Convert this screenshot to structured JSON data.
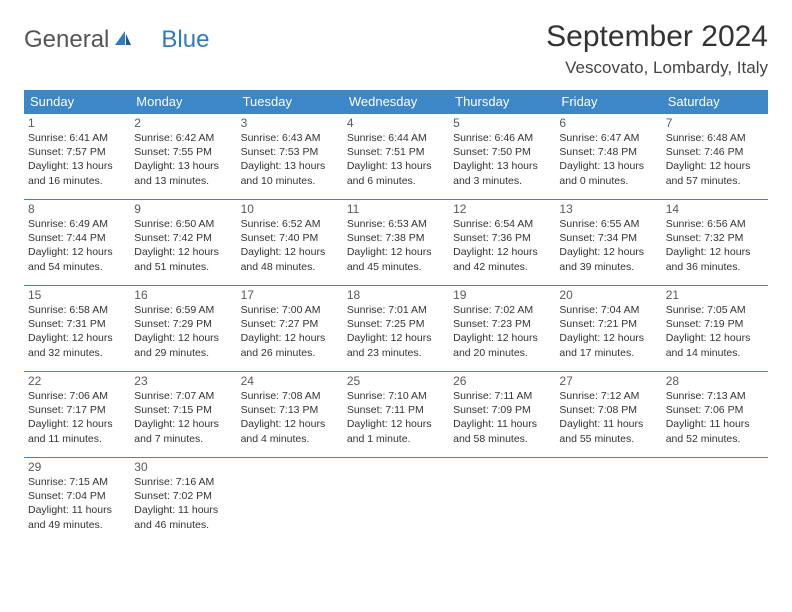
{
  "logo": {
    "text1": "General",
    "text2": "Blue"
  },
  "title": "September 2024",
  "location": "Vescovato, Lombardy, Italy",
  "theme": {
    "header_bg": "#3b87c8",
    "header_fg": "#ffffff",
    "border": "#3b87c8",
    "text": "#333333",
    "logo_gray": "#555555",
    "logo_blue": "#2e7bc0"
  },
  "day_headers": [
    "Sunday",
    "Monday",
    "Tuesday",
    "Wednesday",
    "Thursday",
    "Friday",
    "Saturday"
  ],
  "days": [
    {
      "n": 1,
      "sunrise": "6:41 AM",
      "sunset": "7:57 PM",
      "dl": "13 hours and 16 minutes."
    },
    {
      "n": 2,
      "sunrise": "6:42 AM",
      "sunset": "7:55 PM",
      "dl": "13 hours and 13 minutes."
    },
    {
      "n": 3,
      "sunrise": "6:43 AM",
      "sunset": "7:53 PM",
      "dl": "13 hours and 10 minutes."
    },
    {
      "n": 4,
      "sunrise": "6:44 AM",
      "sunset": "7:51 PM",
      "dl": "13 hours and 6 minutes."
    },
    {
      "n": 5,
      "sunrise": "6:46 AM",
      "sunset": "7:50 PM",
      "dl": "13 hours and 3 minutes."
    },
    {
      "n": 6,
      "sunrise": "6:47 AM",
      "sunset": "7:48 PM",
      "dl": "13 hours and 0 minutes."
    },
    {
      "n": 7,
      "sunrise": "6:48 AM",
      "sunset": "7:46 PM",
      "dl": "12 hours and 57 minutes."
    },
    {
      "n": 8,
      "sunrise": "6:49 AM",
      "sunset": "7:44 PM",
      "dl": "12 hours and 54 minutes."
    },
    {
      "n": 9,
      "sunrise": "6:50 AM",
      "sunset": "7:42 PM",
      "dl": "12 hours and 51 minutes."
    },
    {
      "n": 10,
      "sunrise": "6:52 AM",
      "sunset": "7:40 PM",
      "dl": "12 hours and 48 minutes."
    },
    {
      "n": 11,
      "sunrise": "6:53 AM",
      "sunset": "7:38 PM",
      "dl": "12 hours and 45 minutes."
    },
    {
      "n": 12,
      "sunrise": "6:54 AM",
      "sunset": "7:36 PM",
      "dl": "12 hours and 42 minutes."
    },
    {
      "n": 13,
      "sunrise": "6:55 AM",
      "sunset": "7:34 PM",
      "dl": "12 hours and 39 minutes."
    },
    {
      "n": 14,
      "sunrise": "6:56 AM",
      "sunset": "7:32 PM",
      "dl": "12 hours and 36 minutes."
    },
    {
      "n": 15,
      "sunrise": "6:58 AM",
      "sunset": "7:31 PM",
      "dl": "12 hours and 32 minutes."
    },
    {
      "n": 16,
      "sunrise": "6:59 AM",
      "sunset": "7:29 PM",
      "dl": "12 hours and 29 minutes."
    },
    {
      "n": 17,
      "sunrise": "7:00 AM",
      "sunset": "7:27 PM",
      "dl": "12 hours and 26 minutes."
    },
    {
      "n": 18,
      "sunrise": "7:01 AM",
      "sunset": "7:25 PM",
      "dl": "12 hours and 23 minutes."
    },
    {
      "n": 19,
      "sunrise": "7:02 AM",
      "sunset": "7:23 PM",
      "dl": "12 hours and 20 minutes."
    },
    {
      "n": 20,
      "sunrise": "7:04 AM",
      "sunset": "7:21 PM",
      "dl": "12 hours and 17 minutes."
    },
    {
      "n": 21,
      "sunrise": "7:05 AM",
      "sunset": "7:19 PM",
      "dl": "12 hours and 14 minutes."
    },
    {
      "n": 22,
      "sunrise": "7:06 AM",
      "sunset": "7:17 PM",
      "dl": "12 hours and 11 minutes."
    },
    {
      "n": 23,
      "sunrise": "7:07 AM",
      "sunset": "7:15 PM",
      "dl": "12 hours and 7 minutes."
    },
    {
      "n": 24,
      "sunrise": "7:08 AM",
      "sunset": "7:13 PM",
      "dl": "12 hours and 4 minutes."
    },
    {
      "n": 25,
      "sunrise": "7:10 AM",
      "sunset": "7:11 PM",
      "dl": "12 hours and 1 minute."
    },
    {
      "n": 26,
      "sunrise": "7:11 AM",
      "sunset": "7:09 PM",
      "dl": "11 hours and 58 minutes."
    },
    {
      "n": 27,
      "sunrise": "7:12 AM",
      "sunset": "7:08 PM",
      "dl": "11 hours and 55 minutes."
    },
    {
      "n": 28,
      "sunrise": "7:13 AM",
      "sunset": "7:06 PM",
      "dl": "11 hours and 52 minutes."
    },
    {
      "n": 29,
      "sunrise": "7:15 AM",
      "sunset": "7:04 PM",
      "dl": "11 hours and 49 minutes."
    },
    {
      "n": 30,
      "sunrise": "7:16 AM",
      "sunset": "7:02 PM",
      "dl": "11 hours and 46 minutes."
    }
  ],
  "labels": {
    "sunrise": "Sunrise:",
    "sunset": "Sunset:",
    "daylight": "Daylight:"
  }
}
